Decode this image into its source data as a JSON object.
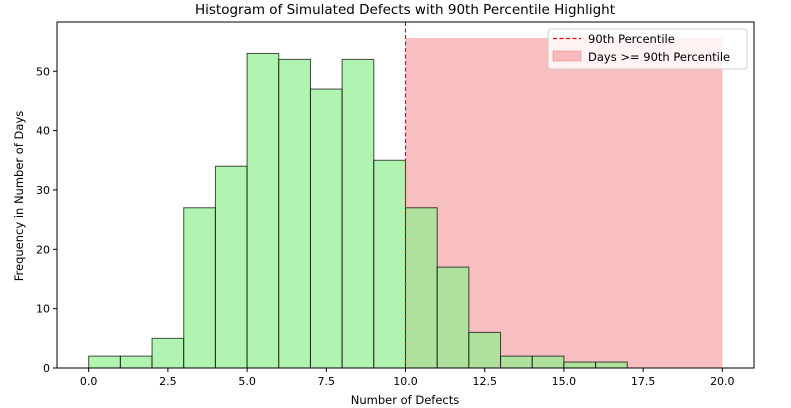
{
  "chart_data": {
    "type": "bar",
    "title": "Histogram of Simulated Defects with 90th Percentile Highlight",
    "xlabel": "Number of Defects",
    "ylabel": "Frequency in Number of Days",
    "xlim": [
      -1,
      21
    ],
    "ylim": [
      0,
      58.3
    ],
    "x_ticks": [
      0.0,
      2.5,
      5.0,
      7.5,
      10.0,
      12.5,
      15.0,
      17.5,
      20.0
    ],
    "x_tick_labels": [
      "0.0",
      "2.5",
      "5.0",
      "7.5",
      "10.0",
      "12.5",
      "15.0",
      "17.5",
      "20.0"
    ],
    "y_ticks": [
      0,
      10,
      20,
      30,
      40,
      50
    ],
    "y_tick_labels": [
      "0",
      "10",
      "20",
      "30",
      "40",
      "50"
    ],
    "bins": [
      {
        "start": 0,
        "end": 1,
        "count": 2
      },
      {
        "start": 1,
        "end": 2,
        "count": 2
      },
      {
        "start": 2,
        "end": 3,
        "count": 5
      },
      {
        "start": 3,
        "end": 4,
        "count": 27
      },
      {
        "start": 4,
        "end": 5,
        "count": 34
      },
      {
        "start": 5,
        "end": 6,
        "count": 53
      },
      {
        "start": 6,
        "end": 7,
        "count": 52
      },
      {
        "start": 7,
        "end": 8,
        "count": 47
      },
      {
        "start": 8,
        "end": 9,
        "count": 52
      },
      {
        "start": 9,
        "end": 10,
        "count": 35
      },
      {
        "start": 10,
        "end": 11,
        "count": 27
      },
      {
        "start": 11,
        "end": 12,
        "count": 17
      },
      {
        "start": 12,
        "end": 13,
        "count": 6
      },
      {
        "start": 13,
        "end": 14,
        "count": 2
      },
      {
        "start": 14,
        "end": 15,
        "count": 2
      },
      {
        "start": 15,
        "end": 16,
        "count": 1
      },
      {
        "start": 16,
        "end": 17,
        "count": 1
      }
    ],
    "bar_color": "#90ee90",
    "bar_edge_color": "#000000",
    "percentile_90": 10.0,
    "percentile_line_color": "#ff0000",
    "highlight_span": {
      "x_start": 10.0,
      "x_end": 20.0,
      "y_max": 55.6
    },
    "highlight_color": "#f08080",
    "legend": {
      "placement": "top-right",
      "entries": [
        {
          "label": "90th Percentile",
          "style": "dashed-line",
          "color": "#ff0000"
        },
        {
          "label": "Days >= 90th Percentile",
          "style": "patch",
          "color": "#f08080"
        }
      ]
    },
    "grid": false
  }
}
